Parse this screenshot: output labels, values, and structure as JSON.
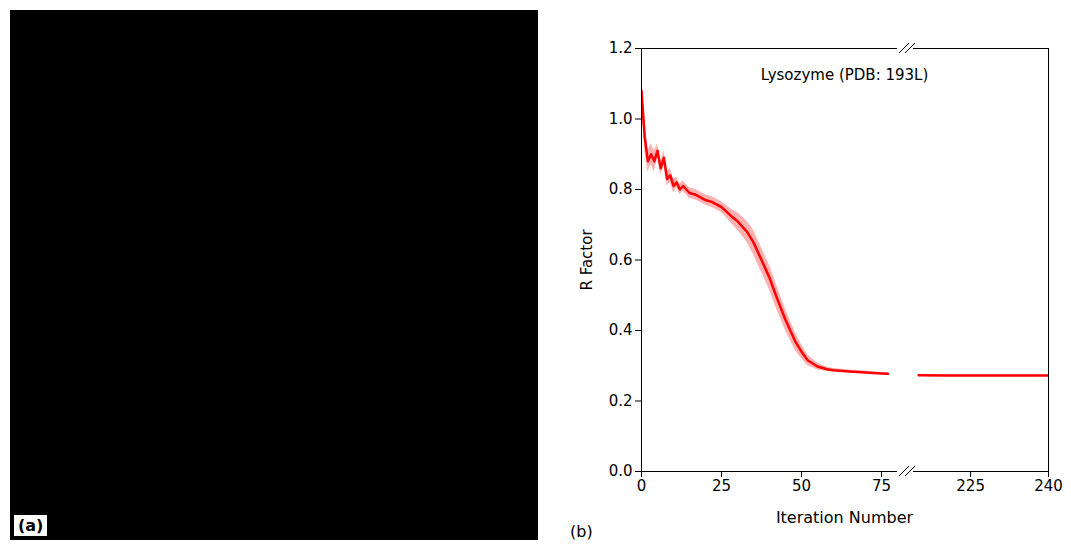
{
  "chart_data": [
    {
      "type": "image",
      "panel_label": "(a)"
    },
    {
      "type": "line",
      "panel_label": "(b)",
      "title": "Lysozyme (PDB: 193L)",
      "x_label": "Iteration Number",
      "y_label": "R Factor",
      "x": [
        0,
        1,
        2,
        3,
        4,
        5,
        6,
        7,
        8,
        9,
        10,
        11,
        12,
        13,
        14,
        15,
        17,
        20,
        22,
        25,
        28,
        30,
        33,
        35,
        38,
        40,
        42,
        45,
        48,
        50,
        52,
        55,
        58,
        60,
        65,
        70,
        75,
        77,
        215,
        220,
        225,
        230,
        235,
        240
      ],
      "series": [
        {
          "color": "red",
          "values": [
            1.08,
            0.95,
            0.88,
            0.9,
            0.88,
            0.91,
            0.86,
            0.89,
            0.83,
            0.84,
            0.81,
            0.82,
            0.8,
            0.81,
            0.8,
            0.79,
            0.785,
            0.77,
            0.765,
            0.75,
            0.725,
            0.71,
            0.68,
            0.65,
            0.59,
            0.55,
            0.5,
            0.43,
            0.37,
            0.34,
            0.315,
            0.298,
            0.29,
            0.287,
            0.284,
            0.281,
            0.278,
            0.277,
            0.273,
            0.272,
            0.272,
            0.272,
            0.272,
            0.272
          ],
          "lower": [
            1.05,
            0.91,
            0.85,
            0.87,
            0.85,
            0.89,
            0.84,
            0.87,
            0.81,
            0.82,
            0.79,
            0.805,
            0.785,
            0.795,
            0.785,
            0.775,
            0.77,
            0.755,
            0.75,
            0.735,
            0.705,
            0.685,
            0.65,
            0.615,
            0.555,
            0.515,
            0.465,
            0.4,
            0.345,
            0.32,
            0.3,
            0.288,
            0.284,
            0.282,
            0.28,
            0.277,
            0.275,
            0.274,
            0.271,
            0.27,
            0.27,
            0.27,
            0.27,
            0.27
          ],
          "upper": [
            1.11,
            0.99,
            0.91,
            0.93,
            0.91,
            0.93,
            0.88,
            0.91,
            0.85,
            0.86,
            0.83,
            0.835,
            0.815,
            0.825,
            0.815,
            0.805,
            0.8,
            0.785,
            0.78,
            0.765,
            0.745,
            0.735,
            0.71,
            0.685,
            0.625,
            0.585,
            0.535,
            0.46,
            0.395,
            0.36,
            0.33,
            0.308,
            0.296,
            0.292,
            0.288,
            0.285,
            0.281,
            0.28,
            0.275,
            0.274,
            0.274,
            0.274,
            0.274,
            0.274
          ]
        }
      ],
      "xlim": [
        [
          0,
          80
        ],
        [
          214,
          240
        ]
      ],
      "xticks": [
        [
          0,
          25,
          50,
          75
        ],
        [
          225,
          240
        ]
      ],
      "ylim": [
        0,
        1.2
      ],
      "yticks": [
        {
          "value": 0,
          "label": "0.0"
        },
        {
          "value": 0.2,
          "label": "0.2"
        },
        {
          "value": 0.4,
          "label": "0.4"
        },
        {
          "value": 0.6,
          "label": "0.6"
        },
        {
          "value": 0.8,
          "label": "0.8"
        },
        {
          "value": 1.0,
          "label": "1.0"
        },
        {
          "value": 1.2,
          "label": "1.2"
        }
      ],
      "grid": false
    }
  ]
}
